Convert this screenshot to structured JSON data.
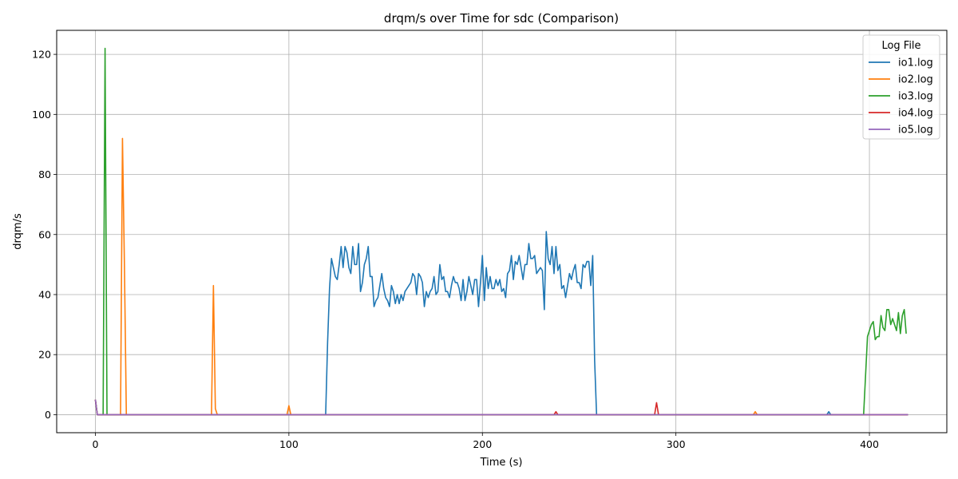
{
  "chart_data": {
    "type": "line",
    "title": "drqm/s over Time for sdc (Comparison)",
    "xlabel": "Time (s)",
    "ylabel": "drqm/s",
    "xlim": [
      -20,
      440
    ],
    "ylim": [
      -6,
      128
    ],
    "xticks": [
      0,
      100,
      200,
      300,
      400
    ],
    "yticks": [
      0,
      20,
      40,
      60,
      80,
      100,
      120
    ],
    "grid": true,
    "legend": {
      "title": "Log File",
      "position": "top-right"
    },
    "series": [
      {
        "name": "io1.log",
        "color": "#1f77b4",
        "points": [
          [
            0,
            5
          ],
          [
            1,
            0
          ],
          [
            119,
            0
          ],
          [
            120,
            24
          ],
          [
            121,
            42
          ],
          [
            122,
            52
          ],
          [
            123,
            49
          ],
          [
            124,
            46
          ],
          [
            125,
            45
          ],
          [
            126,
            50
          ],
          [
            127,
            56
          ],
          [
            128,
            49
          ],
          [
            129,
            56
          ],
          [
            130,
            54
          ],
          [
            131,
            49
          ],
          [
            132,
            47
          ],
          [
            133,
            56
          ],
          [
            134,
            50
          ],
          [
            135,
            50
          ],
          [
            136,
            57
          ],
          [
            137,
            41
          ],
          [
            138,
            44
          ],
          [
            139,
            50
          ],
          [
            140,
            52
          ],
          [
            141,
            56
          ],
          [
            142,
            46
          ],
          [
            143,
            46
          ],
          [
            144,
            36
          ],
          [
            145,
            38
          ],
          [
            146,
            39
          ],
          [
            147,
            43
          ],
          [
            148,
            47
          ],
          [
            149,
            42
          ],
          [
            150,
            39
          ],
          [
            151,
            38
          ],
          [
            152,
            36
          ],
          [
            153,
            43
          ],
          [
            154,
            41
          ],
          [
            155,
            37
          ],
          [
            156,
            40
          ],
          [
            157,
            37
          ],
          [
            158,
            40
          ],
          [
            159,
            38
          ],
          [
            160,
            41
          ],
          [
            161,
            42
          ],
          [
            162,
            43
          ],
          [
            163,
            44
          ],
          [
            164,
            47
          ],
          [
            165,
            46
          ],
          [
            166,
            40
          ],
          [
            167,
            47
          ],
          [
            168,
            46
          ],
          [
            169,
            44
          ],
          [
            170,
            36
          ],
          [
            171,
            41
          ],
          [
            172,
            39
          ],
          [
            173,
            41
          ],
          [
            174,
            42
          ],
          [
            175,
            46
          ],
          [
            176,
            40
          ],
          [
            177,
            41
          ],
          [
            178,
            50
          ],
          [
            179,
            45
          ],
          [
            180,
            46
          ],
          [
            181,
            41
          ],
          [
            182,
            41
          ],
          [
            183,
            39
          ],
          [
            184,
            43
          ],
          [
            185,
            46
          ],
          [
            186,
            44
          ],
          [
            187,
            44
          ],
          [
            188,
            42
          ],
          [
            189,
            38
          ],
          [
            190,
            45
          ],
          [
            191,
            38
          ],
          [
            192,
            41
          ],
          [
            193,
            46
          ],
          [
            194,
            43
          ],
          [
            195,
            40
          ],
          [
            196,
            45
          ],
          [
            197,
            45
          ],
          [
            198,
            36
          ],
          [
            199,
            44
          ],
          [
            200,
            53
          ],
          [
            201,
            38
          ],
          [
            202,
            49
          ],
          [
            203,
            42
          ],
          [
            204,
            46
          ],
          [
            205,
            42
          ],
          [
            206,
            42
          ],
          [
            207,
            45
          ],
          [
            208,
            43
          ],
          [
            209,
            45
          ],
          [
            210,
            41
          ],
          [
            211,
            42
          ],
          [
            212,
            39
          ],
          [
            213,
            47
          ],
          [
            214,
            48
          ],
          [
            215,
            53
          ],
          [
            216,
            45
          ],
          [
            217,
            51
          ],
          [
            218,
            50
          ],
          [
            219,
            53
          ],
          [
            220,
            49
          ],
          [
            221,
            45
          ],
          [
            222,
            50
          ],
          [
            223,
            50
          ],
          [
            224,
            57
          ],
          [
            225,
            52
          ],
          [
            226,
            52
          ],
          [
            227,
            53
          ],
          [
            228,
            47
          ],
          [
            229,
            48
          ],
          [
            230,
            49
          ],
          [
            231,
            48
          ],
          [
            232,
            35
          ],
          [
            233,
            61
          ],
          [
            234,
            52
          ],
          [
            235,
            50
          ],
          [
            236,
            56
          ],
          [
            237,
            47
          ],
          [
            238,
            56
          ],
          [
            239,
            48
          ],
          [
            240,
            50
          ],
          [
            241,
            42
          ],
          [
            242,
            43
          ],
          [
            243,
            39
          ],
          [
            244,
            43
          ],
          [
            245,
            47
          ],
          [
            246,
            45
          ],
          [
            247,
            48
          ],
          [
            248,
            50
          ],
          [
            249,
            44
          ],
          [
            250,
            44
          ],
          [
            251,
            42
          ],
          [
            252,
            50
          ],
          [
            253,
            49
          ],
          [
            254,
            51
          ],
          [
            255,
            51
          ],
          [
            256,
            43
          ],
          [
            257,
            53
          ],
          [
            258,
            18
          ],
          [
            259,
            0
          ],
          [
            378,
            0
          ],
          [
            379,
            1
          ],
          [
            380,
            0
          ],
          [
            420,
            0
          ]
        ]
      },
      {
        "name": "io2.log",
        "color": "#ff7f0e",
        "points": [
          [
            0,
            5
          ],
          [
            1,
            0
          ],
          [
            13,
            0
          ],
          [
            14,
            92
          ],
          [
            15,
            50
          ],
          [
            16,
            0
          ],
          [
            60,
            0
          ],
          [
            61,
            43
          ],
          [
            62,
            2
          ],
          [
            63,
            0
          ],
          [
            99,
            0
          ],
          [
            100,
            3
          ],
          [
            101,
            0
          ],
          [
            340,
            0
          ],
          [
            341,
            1
          ],
          [
            342,
            0
          ],
          [
            420,
            0
          ]
        ]
      },
      {
        "name": "io3.log",
        "color": "#2ca02c",
        "points": [
          [
            0,
            5
          ],
          [
            1,
            0
          ],
          [
            4,
            0
          ],
          [
            5,
            122
          ],
          [
            6,
            0
          ],
          [
            397,
            0
          ],
          [
            398,
            13
          ],
          [
            399,
            26
          ],
          [
            400,
            28
          ],
          [
            401,
            30
          ],
          [
            402,
            31
          ],
          [
            403,
            25
          ],
          [
            404,
            26
          ],
          [
            405,
            26
          ],
          [
            406,
            33
          ],
          [
            407,
            29
          ],
          [
            408,
            28
          ],
          [
            409,
            35
          ],
          [
            410,
            35
          ],
          [
            411,
            30
          ],
          [
            412,
            32
          ],
          [
            413,
            30
          ],
          [
            414,
            28
          ],
          [
            415,
            34
          ],
          [
            416,
            27
          ],
          [
            417,
            33
          ],
          [
            418,
            35
          ],
          [
            419,
            27
          ]
        ]
      },
      {
        "name": "io4.log",
        "color": "#d62728",
        "points": [
          [
            0,
            5
          ],
          [
            1,
            0
          ],
          [
            237,
            0
          ],
          [
            238,
            1
          ],
          [
            239,
            0
          ],
          [
            289,
            0
          ],
          [
            290,
            4
          ],
          [
            291,
            0
          ],
          [
            420,
            0
          ]
        ]
      },
      {
        "name": "io5.log",
        "color": "#9467bd",
        "points": [
          [
            0,
            5
          ],
          [
            1,
            0
          ],
          [
            420,
            0
          ]
        ]
      }
    ]
  }
}
